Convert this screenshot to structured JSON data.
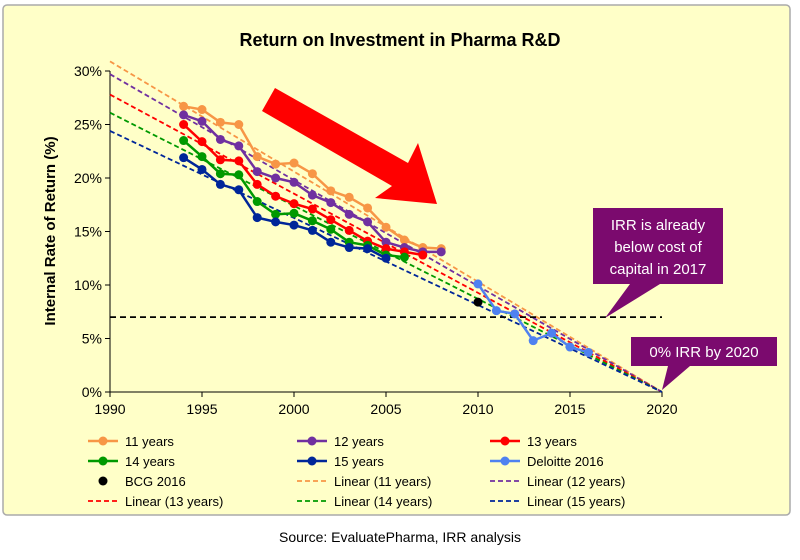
{
  "chart_data": {
    "type": "line",
    "title": "Return on Investment in Pharma R&D",
    "ylabel": "Internal Rate of Return (%)",
    "xlabel": "",
    "xlim": [
      1990,
      2020
    ],
    "ylim": [
      0,
      30
    ],
    "x_ticks": [
      "1990",
      "1995",
      "2000",
      "2005",
      "2010",
      "2015",
      "2020"
    ],
    "y_ticks": [
      "0%",
      "5%",
      "10%",
      "15%",
      "20%",
      "25%",
      "30%"
    ],
    "cost_of_capital": 7,
    "series": [
      {
        "name": "11 years",
        "color": "#f79646",
        "x": [
          1994,
          1995,
          1996,
          1997,
          1998,
          1999,
          2000,
          2001,
          2002,
          2003,
          2004,
          2005,
          2006,
          2007,
          2008
        ],
        "y": [
          26.7,
          26.4,
          25.2,
          25.0,
          22.0,
          21.3,
          21.4,
          20.4,
          18.8,
          18.2,
          17.2,
          15.4,
          14.2,
          13.5,
          13.4
        ]
      },
      {
        "name": "12 years",
        "color": "#7030a0",
        "x": [
          1994,
          1995,
          1996,
          1997,
          1998,
          1999,
          2000,
          2001,
          2002,
          2003,
          2004,
          2005,
          2006,
          2007,
          2008
        ],
        "y": [
          25.9,
          25.3,
          23.6,
          23.0,
          20.6,
          20.0,
          19.6,
          18.4,
          17.7,
          16.6,
          15.9,
          14.0,
          13.5,
          13.1,
          13.1
        ]
      },
      {
        "name": "13 years",
        "color": "#ff0000",
        "x": [
          1994,
          1995,
          1996,
          1997,
          1998,
          1999,
          2000,
          2001,
          2002,
          2003,
          2004,
          2005,
          2006,
          2007
        ],
        "y": [
          25.0,
          23.4,
          21.7,
          21.6,
          19.4,
          18.3,
          17.6,
          17.1,
          16.1,
          15.1,
          14.1,
          13.4,
          13.1,
          12.8
        ]
      },
      {
        "name": "14 years",
        "color": "#009900",
        "x": [
          1994,
          1995,
          1996,
          1997,
          1998,
          1999,
          2000,
          2001,
          2002,
          2003,
          2004,
          2005,
          2006
        ],
        "y": [
          23.5,
          22.0,
          20.4,
          20.3,
          17.8,
          16.6,
          16.7,
          16.0,
          15.2,
          14.0,
          13.7,
          12.8,
          12.6
        ]
      },
      {
        "name": "15 years",
        "color": "#002699",
        "x": [
          1994,
          1995,
          1996,
          1997,
          1998,
          1999,
          2000,
          2001,
          2002,
          2003,
          2004,
          2005
        ],
        "y": [
          21.9,
          20.8,
          19.4,
          18.9,
          16.3,
          15.9,
          15.6,
          15.1,
          14.0,
          13.5,
          13.4,
          12.5
        ]
      },
      {
        "name": "Deloitte 2016",
        "color": "#4f81f0",
        "x": [
          2010,
          2011,
          2012,
          2013,
          2014,
          2015,
          2016
        ],
        "y": [
          10.1,
          7.6,
          7.3,
          4.8,
          5.5,
          4.2,
          3.7
        ]
      },
      {
        "name": "BCG 2016",
        "color": "#000000",
        "marker_only": true,
        "x": [
          2010
        ],
        "y": [
          8.4
        ]
      }
    ],
    "trendlines": [
      {
        "name": "Linear (11 years)",
        "color": "#f79646",
        "x": [
          1990,
          2020
        ],
        "y": [
          30.9,
          0
        ]
      },
      {
        "name": "Linear (12 years)",
        "color": "#7030a0",
        "x": [
          1990,
          2020
        ],
        "y": [
          29.7,
          0
        ]
      },
      {
        "name": "Linear (13 years)",
        "color": "#ff0000",
        "x": [
          1990,
          2020
        ],
        "y": [
          27.8,
          0
        ]
      },
      {
        "name": "Linear (14 years)",
        "color": "#009900",
        "x": [
          1990,
          2020
        ],
        "y": [
          26.1,
          0
        ]
      },
      {
        "name": "Linear (15 years)",
        "color": "#002699",
        "x": [
          1990,
          2020
        ],
        "y": [
          24.4,
          0
        ]
      }
    ],
    "legend_placement": "bottom",
    "grid": false
  },
  "annotations": {
    "callout_1": [
      "IRR is already",
      "below cost of",
      "capital in 2017"
    ],
    "callout_2": "0% IRR by 2020",
    "callout_color": "#7b0a6e",
    "arrow_color": "#ff0000"
  },
  "source": "Source: EvaluatePharma,  IRR analysis"
}
